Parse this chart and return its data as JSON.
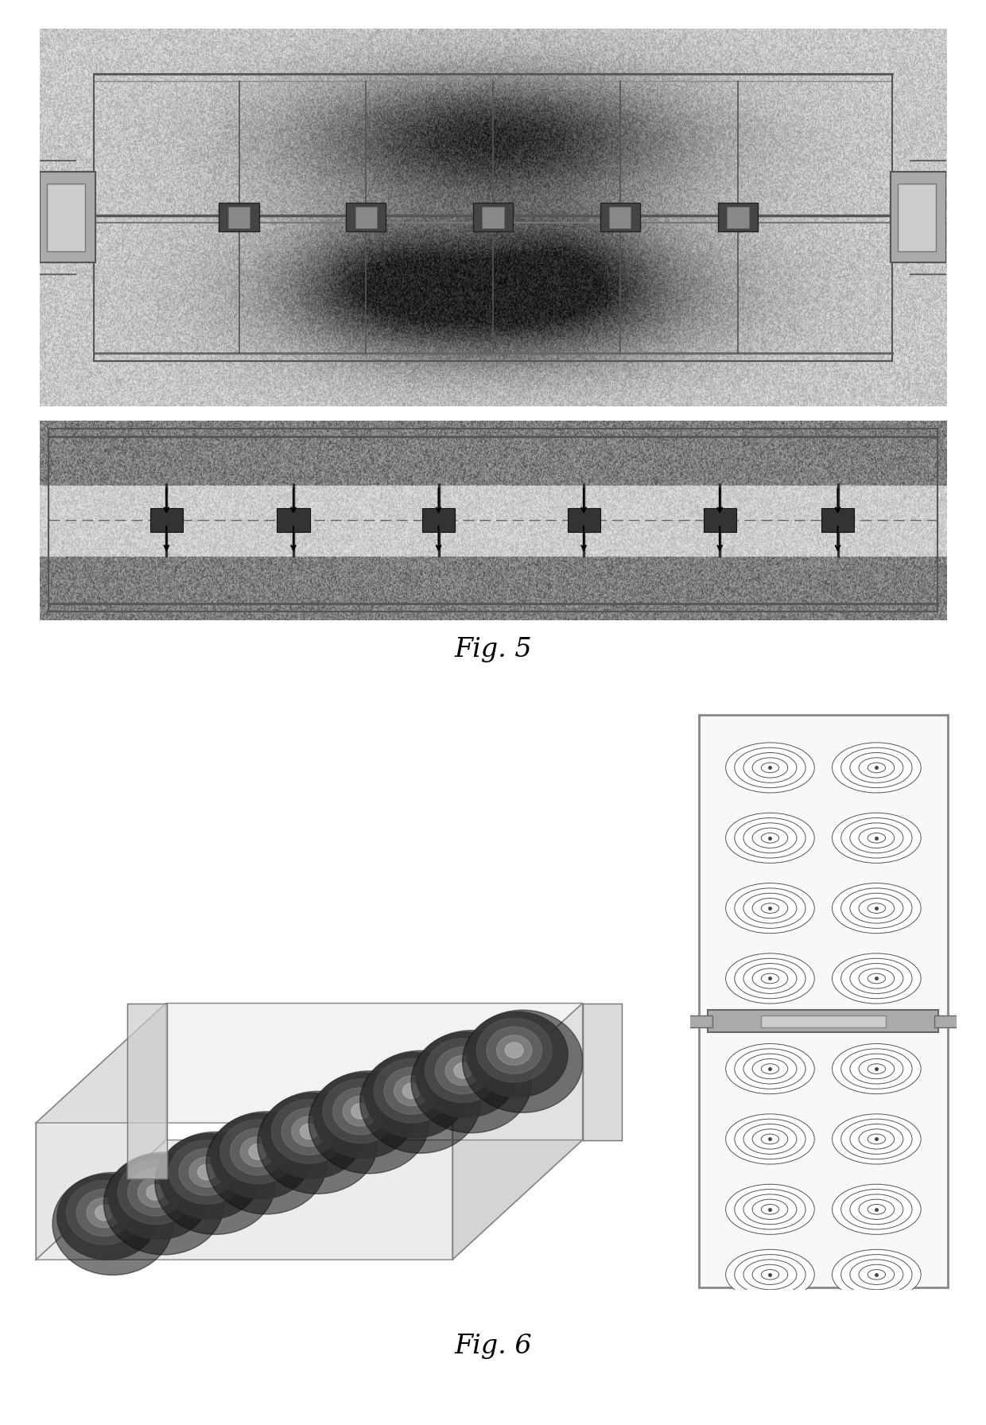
{
  "fig_width": 12.4,
  "fig_height": 17.92,
  "dpi": 100,
  "bg_color": "#ffffff",
  "fig5_label": "Fig. 5",
  "fig6_label": "Fig. 6"
}
